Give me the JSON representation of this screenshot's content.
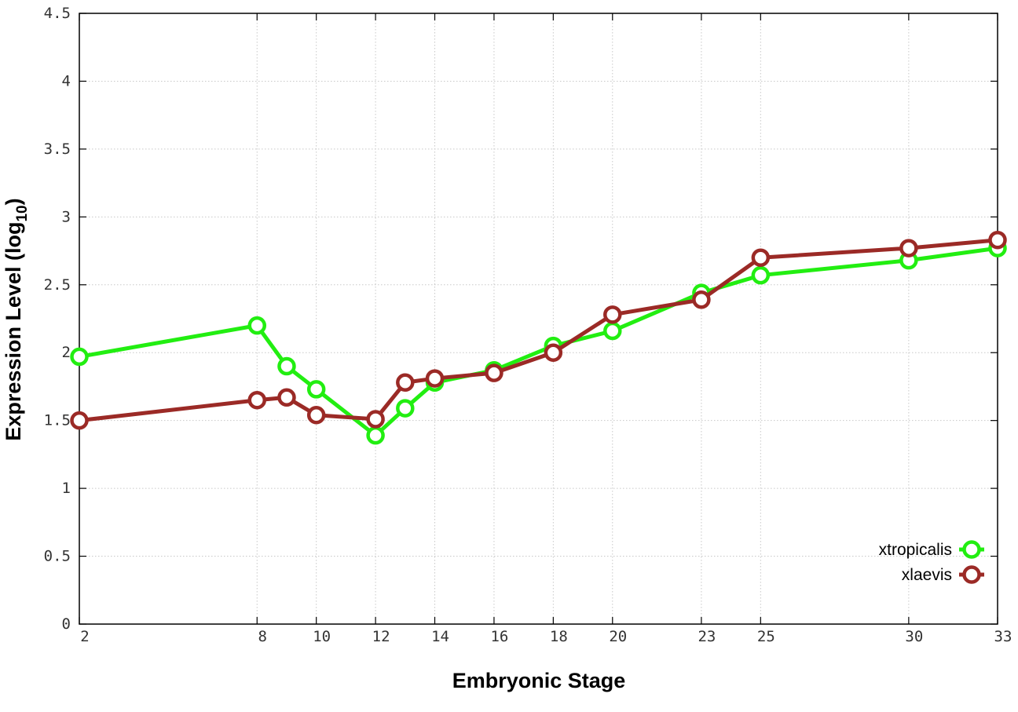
{
  "chart_data": {
    "type": "line",
    "title": "",
    "xlabel": "Embryonic Stage",
    "ylabel_main": "Expression Level (log",
    "ylabel_sub": "10",
    "ylabel_close": ")",
    "x": [
      2,
      8,
      9,
      10,
      12,
      13,
      14,
      16,
      18,
      20,
      23,
      25,
      30,
      33
    ],
    "x_tick_labels": [
      "2",
      "8",
      "10",
      "12",
      "14",
      "16",
      "18",
      "20",
      "23",
      "25",
      "30",
      "33"
    ],
    "x_tick_values": [
      2,
      8,
      10,
      12,
      14,
      16,
      18,
      20,
      23,
      25,
      30,
      33
    ],
    "y_tick_labels": [
      "0",
      "0.5",
      "1",
      "1.5",
      "2",
      "2.5",
      "3",
      "3.5",
      "4",
      "4.5"
    ],
    "y_tick_values": [
      0,
      0.5,
      1,
      1.5,
      2,
      2.5,
      3,
      3.5,
      4,
      4.5
    ],
    "xlim": [
      2,
      33
    ],
    "ylim": [
      0,
      4.5
    ],
    "grid": true,
    "legend_position": "bottom-right",
    "series": [
      {
        "name": "xtropicalis",
        "color": "#22ee11",
        "values": [
          1.97,
          2.2,
          1.9,
          1.73,
          1.39,
          1.59,
          1.78,
          1.87,
          2.05,
          2.16,
          2.44,
          2.57,
          2.68,
          2.77
        ]
      },
      {
        "name": "xlaevis",
        "color": "#9b2a26",
        "values": [
          1.5,
          1.65,
          1.67,
          1.54,
          1.51,
          1.78,
          1.81,
          1.85,
          2.0,
          2.28,
          2.39,
          2.7,
          2.77,
          2.83
        ]
      }
    ]
  }
}
